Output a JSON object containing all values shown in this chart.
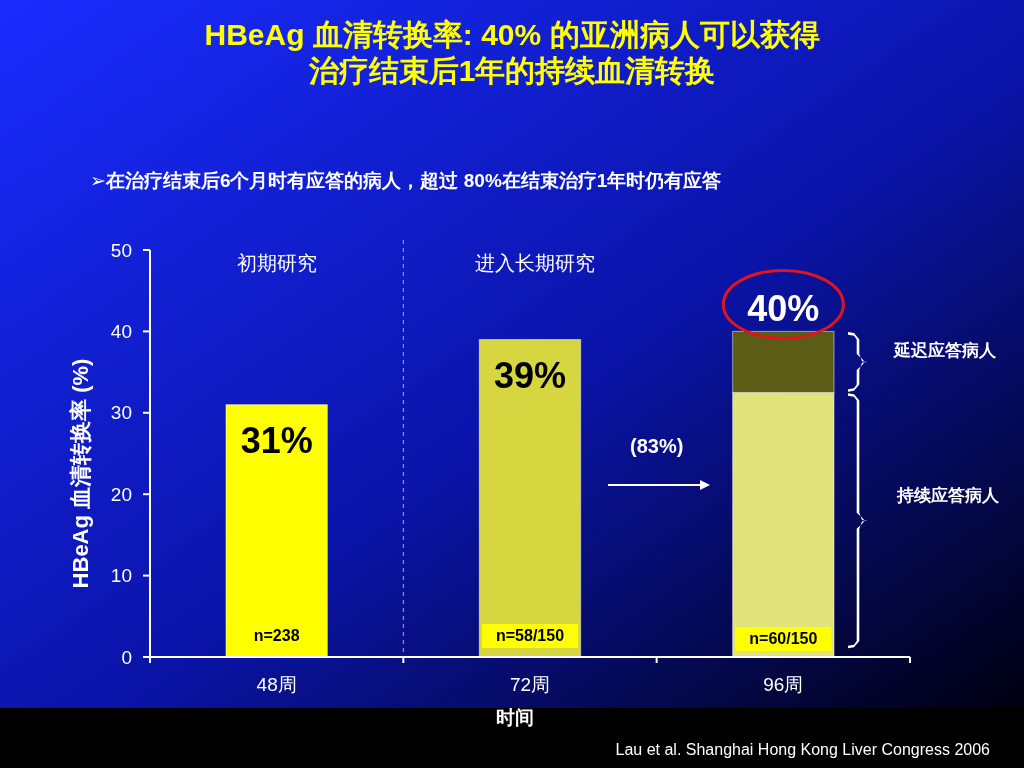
{
  "chart_data": {
    "type": "bar",
    "title": "HBeAg 血清转换率: 40% 的亚洲病人可以获得治疗结束后1年的持续血清转换",
    "subtitle": "➢在治疗结束后6个月时有应答的病人，超过 80%在结束治疗1年时仍有应答",
    "xlabel": "时间",
    "ylabel": "HBeAg 血清转换率 (%)",
    "categories": [
      "48周",
      "72周",
      "96周"
    ],
    "stacked": true,
    "series": [
      {
        "colors": [
          "#ffff00",
          "#d6d640",
          "#e2e27a"
        ],
        "values": [
          31,
          39,
          32.5
        ]
      },
      {
        "color": "#5c5c14",
        "values": [
          null,
          null,
          7.5
        ]
      }
    ],
    "totals": [
      "31%",
      "39%",
      "40%"
    ],
    "ylim": [
      0,
      50
    ],
    "yticks": [
      0,
      10,
      20,
      30,
      40,
      50
    ],
    "annotations": [
      "初期研究",
      "进入长期研究",
      "(83%)",
      "延迟应答病人",
      "持续应答病人",
      "n=238",
      "n=58/150",
      "n=60/150",
      "Lau et al. Shanghai Hong Kong Liver Congress 2006"
    ]
  }
}
